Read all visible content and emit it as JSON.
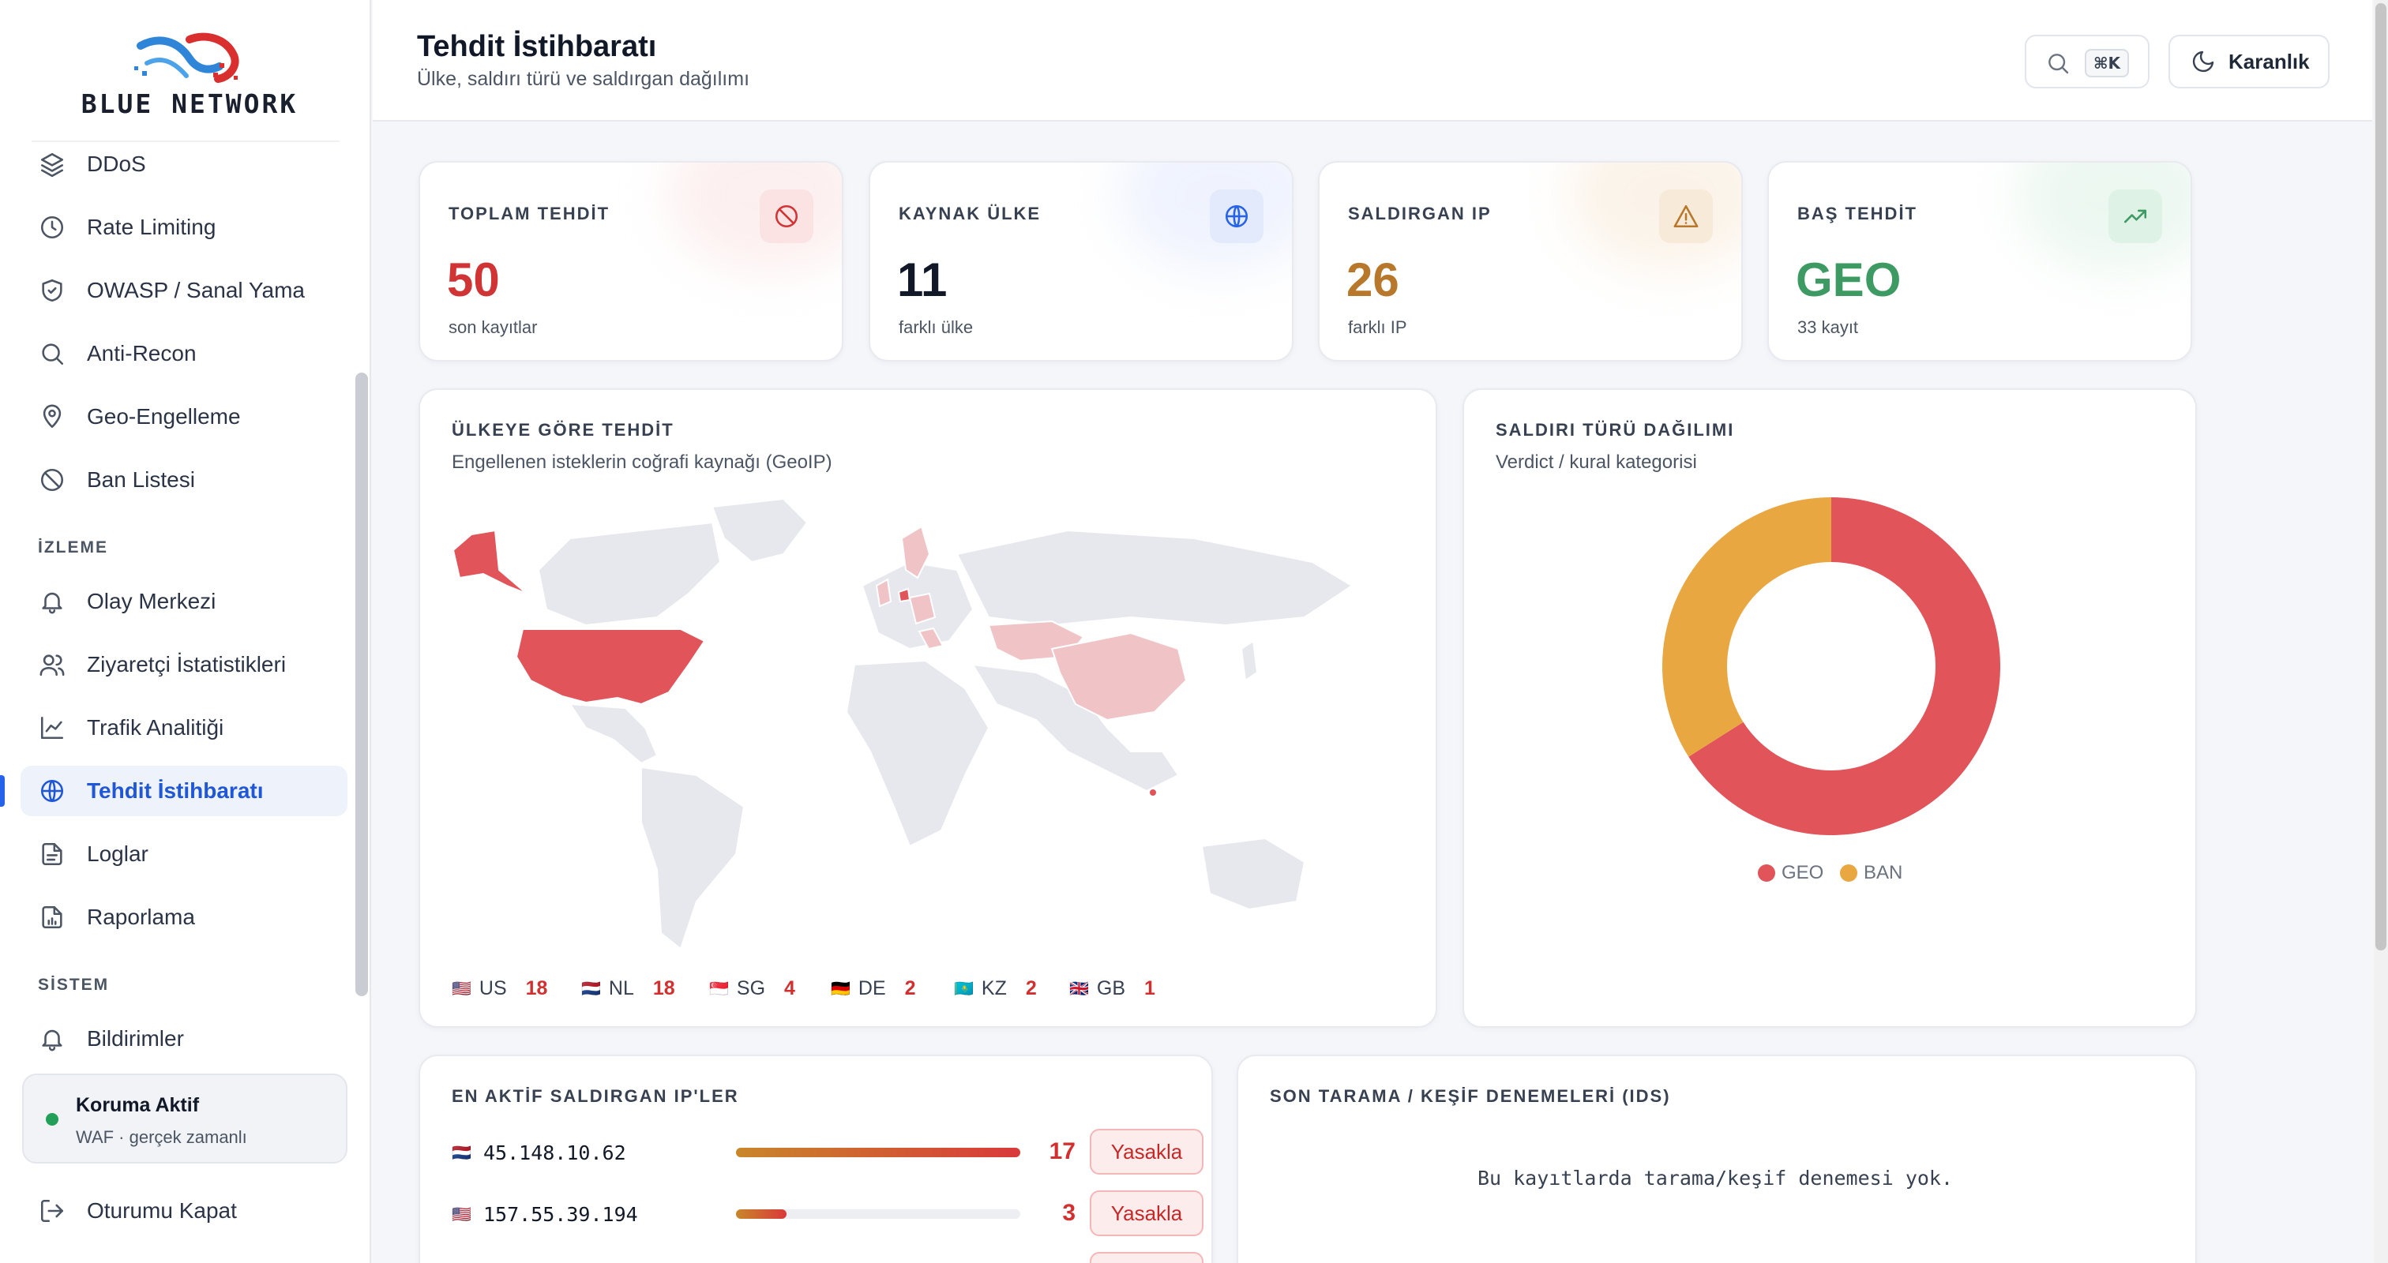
{
  "brand": {
    "name": "BLUE NETWORK"
  },
  "sidebar": {
    "items_top": [
      {
        "label": "DDoS",
        "icon": "layers-icon"
      },
      {
        "label": "Rate Limiting",
        "icon": "clock-icon"
      },
      {
        "label": "OWASP / Sanal Yama",
        "icon": "shield-check-icon"
      },
      {
        "label": "Anti-Recon",
        "icon": "search-icon"
      },
      {
        "label": "Geo-Engelleme",
        "icon": "map-pin-icon"
      },
      {
        "label": "Ban Listesi",
        "icon": "ban-icon"
      }
    ],
    "section_monitor": "İZLEME",
    "items_monitor": [
      {
        "label": "Olay Merkezi",
        "icon": "bell-icon"
      },
      {
        "label": "Ziyaretçi İstatistikleri",
        "icon": "users-icon"
      },
      {
        "label": "Trafik Analitiği",
        "icon": "line-chart-icon"
      },
      {
        "label": "Tehdit İstihbaratı",
        "icon": "globe-icon",
        "active": true
      },
      {
        "label": "Loglar",
        "icon": "file-icon"
      },
      {
        "label": "Raporlama",
        "icon": "report-icon"
      }
    ],
    "section_system": "SİSTEM",
    "items_system": [
      {
        "label": "Bildirimler",
        "icon": "bell-icon"
      }
    ],
    "status": {
      "title": "Koruma Aktif",
      "subtitle": "WAF · gerçek zamanlı",
      "color": "#22a05a"
    },
    "logout": {
      "label": "Oturumu Kapat",
      "icon": "logout-icon"
    }
  },
  "header": {
    "title": "Tehdit İstihbaratı",
    "subtitle": "Ülke, saldırı türü ve saldırgan dağılımı",
    "search_shortcut": "⌘K",
    "theme_label": "Karanlık"
  },
  "stats": [
    {
      "label": "TOPLAM TEHDİT",
      "value": "50",
      "sub": "son kayıtlar",
      "color": "#d03434",
      "icon": "ban-icon",
      "icon_bg": "#fbe3e3"
    },
    {
      "label": "KAYNAK ÜLKE",
      "value": "11",
      "sub": "farklı ülke",
      "color": "#111827",
      "icon": "globe-icon",
      "icon_bg": "#e3eafc"
    },
    {
      "label": "SALDIRGAN IP",
      "value": "26",
      "sub": "farklı IP",
      "color": "#b7782b",
      "icon": "warning-icon",
      "icon_bg": "#f8ead8"
    },
    {
      "label": "BAŞ TEHDİT",
      "value": "GEO",
      "sub": "33 kayıt",
      "color": "#3d9a63",
      "icon": "trending-up-icon",
      "icon_bg": "#dff2e6"
    }
  ],
  "map_panel": {
    "title": "ÜLKEYE GÖRE TEHDİT",
    "subtitle": "Engellenen isteklerin coğrafi kaynağı (GeoIP)",
    "countries": [
      {
        "flag": "🇺🇸",
        "code": "US",
        "count": "18"
      },
      {
        "flag": "🇳🇱",
        "code": "NL",
        "count": "18"
      },
      {
        "flag": "🇸🇬",
        "code": "SG",
        "count": "4"
      },
      {
        "flag": "🇩🇪",
        "code": "DE",
        "count": "2"
      },
      {
        "flag": "🇰🇿",
        "code": "KZ",
        "count": "2"
      },
      {
        "flag": "🇬🇧",
        "code": "GB",
        "count": "1"
      }
    ]
  },
  "donut_panel": {
    "title": "SALDIRI TÜRÜ DAĞILIMI",
    "subtitle": "Verdict / kural kategorisi"
  },
  "chart_data": {
    "type": "pie",
    "categories": [
      "GEO",
      "BAN"
    ],
    "values": [
      33,
      17
    ],
    "colors": [
      "#e0545a",
      "#e9a741"
    ],
    "legend": "bottom"
  },
  "ip_panel": {
    "title": "EN AKTİF SALDIRGAN IP'LER",
    "max": 17,
    "rows": [
      {
        "flag": "🇳🇱",
        "ip": "45.148.10.62",
        "count": 17,
        "action": "Yasakla"
      },
      {
        "flag": "🇺🇸",
        "ip": "157.55.39.194",
        "count": 3,
        "action": "Yasakla"
      }
    ]
  },
  "ids_panel": {
    "title": "SON TARAMA / KEŞİF DENEMELERİ (IDS)",
    "empty": "Bu kayıtlarda tarama/keşif denemesi yok."
  }
}
